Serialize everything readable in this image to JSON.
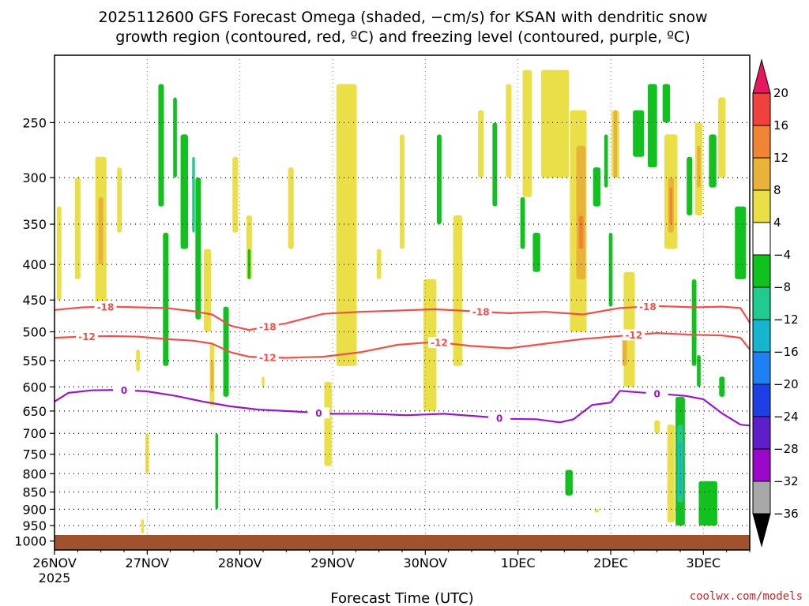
{
  "chart_data": {
    "type": "heatmap",
    "title_line1": "2025112600 GFS Forecast Omega (shaded, −cm/s) for KSAN with dendritic snow",
    "title_line2": "growth region (contoured, red, ºC) and freezing level (contoured, purple, ºC)",
    "xlabel": "Forecast Time (UTC)",
    "x_ticks": [
      "26NOV",
      "27NOV",
      "28NOV",
      "29NOV",
      "30NOV",
      "1DEC",
      "2DEC",
      "3DEC"
    ],
    "x_year": "2025",
    "x_range_days": [
      0,
      7.5
    ],
    "y_ticks": [
      "250",
      "300",
      "350",
      "400",
      "450",
      "500",
      "550",
      "600",
      "650",
      "700",
      "750",
      "800",
      "850",
      "900",
      "950",
      "1000"
    ],
    "y_range_hpa": [
      200,
      1030
    ],
    "y_scale": "log-pressure",
    "grid": true,
    "colorbar": {
      "labels": [
        "20",
        "16",
        "12",
        "8",
        "4",
        "−4",
        "−8",
        "−12",
        "−16",
        "−20",
        "−24",
        "−28",
        "−32",
        "−36"
      ],
      "colors": [
        "#e8175d",
        "#f0413c",
        "#ee8434",
        "#e9b238",
        "#ebdf47",
        "#ffffff",
        "#11c11d",
        "#1fcb8f",
        "#13b6ce",
        "#1f80f2",
        "#1d3fe6",
        "#5e1ec9",
        "#9b08c9",
        "#a8a8a8",
        "#000000"
      ]
    },
    "contours": {
      "minus18": {
        "label": "-18",
        "color": "#ef4f48",
        "x_days": [
          0,
          0.3,
          0.6,
          0.9,
          1.2,
          1.5,
          1.7,
          1.9,
          2.1,
          2.5,
          2.9,
          3.3,
          3.7,
          4.1,
          4.5,
          4.9,
          5.3,
          5.7,
          6.1,
          6.5,
          6.9,
          7.2,
          7.4,
          7.5
        ],
        "p_hpa": [
          465,
          461,
          460,
          461,
          462,
          467,
          472,
          490,
          497,
          486,
          471,
          468,
          466,
          464,
          467,
          470,
          468,
          472,
          462,
          459,
          461,
          460,
          462,
          485
        ]
      },
      "minus12": {
        "label": "-12",
        "color": "#ef4f48",
        "x_days": [
          0,
          0.3,
          0.6,
          0.9,
          1.2,
          1.5,
          1.7,
          1.9,
          2.1,
          2.5,
          2.9,
          3.3,
          3.7,
          4.1,
          4.5,
          4.9,
          5.3,
          5.7,
          6.1,
          6.5,
          6.9,
          7.2,
          7.4,
          7.5
        ],
        "p_hpa": [
          510,
          508,
          507,
          508,
          512,
          515,
          520,
          535,
          543,
          545,
          543,
          535,
          522,
          517,
          524,
          528,
          520,
          512,
          507,
          502,
          505,
          506,
          510,
          530
        ]
      },
      "freezing": {
        "label": "0",
        "color": "#9818c8",
        "x_days": [
          0,
          0.15,
          0.4,
          0.7,
          1.0,
          1.3,
          1.6,
          1.9,
          2.2,
          2.6,
          3.0,
          3.4,
          3.8,
          4.2,
          4.6,
          4.9,
          5.2,
          5.45,
          5.6,
          5.8,
          6.0,
          6.1,
          6.3,
          6.6,
          6.8,
          7.0,
          7.2,
          7.4,
          7.5
        ],
        "p_hpa": [
          630,
          612,
          607,
          606,
          609,
          618,
          630,
          640,
          647,
          651,
          656,
          656,
          659,
          656,
          662,
          667,
          668,
          675,
          668,
          637,
          632,
          608,
          611,
          615,
          618,
          625,
          655,
          680,
          682
        ]
      }
    },
    "omega_patches": [
      {
        "val": 6,
        "x": 0.05,
        "p": [
          330,
          450
        ],
        "w": 0.05
      },
      {
        "val": 6,
        "x": 0.25,
        "p": [
          300,
          420
        ],
        "w": 0.06
      },
      {
        "val": 6,
        "x": 0.5,
        "p": [
          280,
          460
        ],
        "w": 0.12
      },
      {
        "val": 10,
        "x": 0.5,
        "p": [
          320,
          400
        ],
        "w": 0.05
      },
      {
        "val": 6,
        "x": 0.7,
        "p": [
          290,
          360
        ],
        "w": 0.05
      },
      {
        "val": 6,
        "x": 0.9,
        "p": [
          530,
          570
        ],
        "w": 0.04
      },
      {
        "val": 6,
        "x": 1.0,
        "p": [
          700,
          800
        ],
        "w": 0.04
      },
      {
        "val": 6,
        "x": 0.95,
        "p": [
          930,
          975
        ],
        "w": 0.03
      },
      {
        "val": -6,
        "x": 1.15,
        "p": [
          220,
          330
        ],
        "w": 0.06
      },
      {
        "val": -6,
        "x": 1.2,
        "p": [
          360,
          560
        ],
        "w": 0.06
      },
      {
        "val": -6,
        "x": 1.3,
        "p": [
          230,
          300
        ],
        "w": 0.04
      },
      {
        "val": -6,
        "x": 1.4,
        "p": [
          260,
          380
        ],
        "w": 0.08
      },
      {
        "val": -6,
        "x": 1.55,
        "p": [
          300,
          480
        ],
        "w": 0.06
      },
      {
        "val": -10,
        "x": 1.5,
        "p": [
          280,
          360
        ],
        "w": 0.03
      },
      {
        "val": 6,
        "x": 1.65,
        "p": [
          380,
          500
        ],
        "w": 0.08
      },
      {
        "val": 6,
        "x": 1.7,
        "p": [
          520,
          640
        ],
        "w": 0.05
      },
      {
        "val": 10,
        "x": 1.7,
        "p": [
          550,
          610
        ],
        "w": 0.03
      },
      {
        "val": -6,
        "x": 1.75,
        "p": [
          700,
          900
        ],
        "w": 0.03
      },
      {
        "val": -6,
        "x": 1.85,
        "p": [
          460,
          620
        ],
        "w": 0.06
      },
      {
        "val": 6,
        "x": 1.95,
        "p": [
          280,
          360
        ],
        "w": 0.06
      },
      {
        "val": 6,
        "x": 2.1,
        "p": [
          340,
          420
        ],
        "w": 0.06
      },
      {
        "val": -6,
        "x": 2.1,
        "p": [
          380,
          420
        ],
        "w": 0.03
      },
      {
        "val": 6,
        "x": 2.25,
        "p": [
          580,
          600
        ],
        "w": 0.03
      },
      {
        "val": 6,
        "x": 2.55,
        "p": [
          290,
          380
        ],
        "w": 0.06
      },
      {
        "val": 6,
        "x": 2.95,
        "p": [
          590,
          780
        ],
        "w": 0.08
      },
      {
        "val": 6,
        "x": 3.15,
        "p": [
          220,
          560
        ],
        "w": 0.22
      },
      {
        "val": 6,
        "x": 3.5,
        "p": [
          380,
          420
        ],
        "w": 0.05
      },
      {
        "val": 6,
        "x": 3.75,
        "p": [
          260,
          380
        ],
        "w": 0.05
      },
      {
        "val": 6,
        "x": 4.05,
        "p": [
          420,
          650
        ],
        "w": 0.14
      },
      {
        "val": 6,
        "x": 4.35,
        "p": [
          340,
          560
        ],
        "w": 0.1
      },
      {
        "val": -6,
        "x": 4.15,
        "p": [
          260,
          350
        ],
        "w": 0.05
      },
      {
        "val": 6,
        "x": 4.6,
        "p": [
          240,
          300
        ],
        "w": 0.06
      },
      {
        "val": -6,
        "x": 4.75,
        "p": [
          250,
          330
        ],
        "w": 0.05
      },
      {
        "val": 6,
        "x": 4.9,
        "p": [
          220,
          300
        ],
        "w": 0.06
      },
      {
        "val": 6,
        "x": 5.1,
        "p": [
          210,
          320
        ],
        "w": 0.1
      },
      {
        "val": -6,
        "x": 5.05,
        "p": [
          320,
          380
        ],
        "w": 0.05
      },
      {
        "val": -6,
        "x": 5.2,
        "p": [
          360,
          410
        ],
        "w": 0.08
      },
      {
        "val": 6,
        "x": 5.4,
        "p": [
          210,
          300
        ],
        "w": 0.3
      },
      {
        "val": 6,
        "x": 5.65,
        "p": [
          240,
          500
        ],
        "w": 0.18
      },
      {
        "val": 10,
        "x": 5.68,
        "p": [
          270,
          420
        ],
        "w": 0.1
      },
      {
        "val": 14,
        "x": 5.68,
        "p": [
          340,
          380
        ],
        "w": 0.05
      },
      {
        "val": -6,
        "x": 5.85,
        "p": [
          290,
          330
        ],
        "w": 0.08
      },
      {
        "val": -6,
        "x": 5.95,
        "p": [
          260,
          310
        ],
        "w": 0.04
      },
      {
        "val": -6,
        "x": 6.0,
        "p": [
          360,
          460
        ],
        "w": 0.04
      },
      {
        "val": 6,
        "x": 6.05,
        "p": [
          240,
          300
        ],
        "w": 0.08
      },
      {
        "val": 10,
        "x": 6.05,
        "p": [
          240,
          300
        ],
        "w": 0.04
      },
      {
        "val": 6,
        "x": 6.2,
        "p": [
          410,
          600
        ],
        "w": 0.12
      },
      {
        "val": 10,
        "x": 6.15,
        "p": [
          510,
          560
        ],
        "w": 0.05
      },
      {
        "val": -6,
        "x": 6.3,
        "p": [
          240,
          280
        ],
        "w": 0.12
      },
      {
        "val": -6,
        "x": 6.45,
        "p": [
          220,
          290
        ],
        "w": 0.1
      },
      {
        "val": -6,
        "x": 6.6,
        "p": [
          220,
          250
        ],
        "w": 0.08
      },
      {
        "val": 6,
        "x": 6.65,
        "p": [
          260,
          380
        ],
        "w": 0.14
      },
      {
        "val": 10,
        "x": 6.65,
        "p": [
          300,
          360
        ],
        "w": 0.06
      },
      {
        "val": 14,
        "x": 6.65,
        "p": [
          310,
          350
        ],
        "w": 0.03
      },
      {
        "val": 6,
        "x": 6.95,
        "p": [
          250,
          340
        ],
        "w": 0.08
      },
      {
        "val": 10,
        "x": 6.95,
        "p": [
          270,
          310
        ],
        "w": 0.04
      },
      {
        "val": -6,
        "x": 6.85,
        "p": [
          280,
          340
        ],
        "w": 0.06
      },
      {
        "val": -6,
        "x": 6.9,
        "p": [
          420,
          560
        ],
        "w": 0.05
      },
      {
        "val": -6,
        "x": 7.1,
        "p": [
          260,
          310
        ],
        "w": 0.08
      },
      {
        "val": 6,
        "x": 7.2,
        "p": [
          230,
          300
        ],
        "w": 0.08
      },
      {
        "val": -6,
        "x": 7.4,
        "p": [
          330,
          420
        ],
        "w": 0.12
      },
      {
        "val": -6,
        "x": 6.75,
        "p": [
          620,
          950
        ],
        "w": 0.1
      },
      {
        "val": -10,
        "x": 6.75,
        "p": [
          680,
          880
        ],
        "w": 0.06
      },
      {
        "val": -14,
        "x": 6.75,
        "p": [
          720,
          860
        ],
        "w": 0.03
      },
      {
        "val": 6,
        "x": 6.65,
        "p": [
          680,
          940
        ],
        "w": 0.08
      },
      {
        "val": -6,
        "x": 7.05,
        "p": [
          820,
          950
        ],
        "w": 0.2
      },
      {
        "val": -6,
        "x": 5.55,
        "p": [
          790,
          860
        ],
        "w": 0.08
      },
      {
        "val": 6,
        "x": 5.85,
        "p": [
          900,
          910
        ],
        "w": 0.05
      },
      {
        "val": 6,
        "x": 6.5,
        "p": [
          670,
          700
        ],
        "w": 0.06
      },
      {
        "val": -6,
        "x": 7.2,
        "p": [
          580,
          620
        ],
        "w": 0.06
      },
      {
        "val": -6,
        "x": 6.95,
        "p": [
          540,
          600
        ],
        "w": 0.04
      }
    ]
  },
  "credit": "coolwx.com/models"
}
